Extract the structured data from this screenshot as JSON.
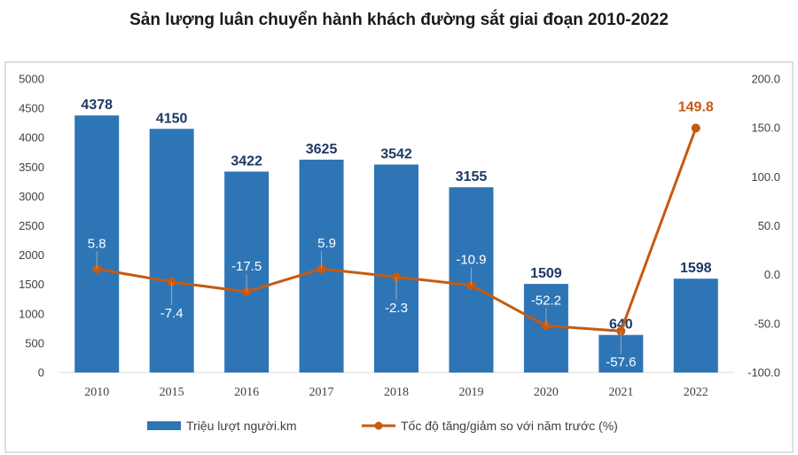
{
  "colors": {
    "bar": "#2e75b6",
    "line": "#c55a11",
    "axis": "#d9d9d9",
    "border": "#bfbfbf"
  },
  "chart_data": {
    "type": "bar",
    "title": "Sản lượng luân chuyển hành khách đường sắt giai đoạn 2010-2022",
    "categories": [
      "2010",
      "2015",
      "2016",
      "2017",
      "2018",
      "2019",
      "2020",
      "2021",
      "2022"
    ],
    "series": [
      {
        "name": "Triệu lượt người.km",
        "type": "bar",
        "axis": "left",
        "values": [
          4378,
          4150,
          3422,
          3625,
          3542,
          3155,
          1509,
          640,
          1598
        ]
      },
      {
        "name": "Tốc độ tăng/giảm so với năm trước (%)",
        "type": "line",
        "axis": "right",
        "values": [
          5.8,
          -7.4,
          -17.5,
          5.9,
          -2.3,
          -10.9,
          -52.2,
          -57.6,
          149.8
        ]
      }
    ],
    "bar_labels": [
      "4378",
      "4150",
      "3422",
      "3625",
      "3542",
      "3155",
      "1509",
      "640",
      "1598"
    ],
    "line_labels": [
      "5.8",
      "-7.4",
      "-17.5",
      "5.9",
      "-2.3",
      "-10.9",
      "-52.2",
      "-57.6",
      "149.8"
    ],
    "ylim_left": [
      0,
      5000
    ],
    "ylim_right": [
      -100,
      200
    ],
    "yticks_left": [
      "0",
      "500",
      "1000",
      "1500",
      "2000",
      "2500",
      "3000",
      "3500",
      "4000",
      "4500",
      "5000"
    ],
    "yticks_right": [
      "-100.0",
      "-50.0",
      "0.0",
      "50.0",
      "100.0",
      "150.0",
      "200.0"
    ],
    "legend": [
      "Triệu lượt người.km",
      "Tốc độ tăng/giảm so với năm trước (%)"
    ],
    "legend_position": "bottom"
  }
}
